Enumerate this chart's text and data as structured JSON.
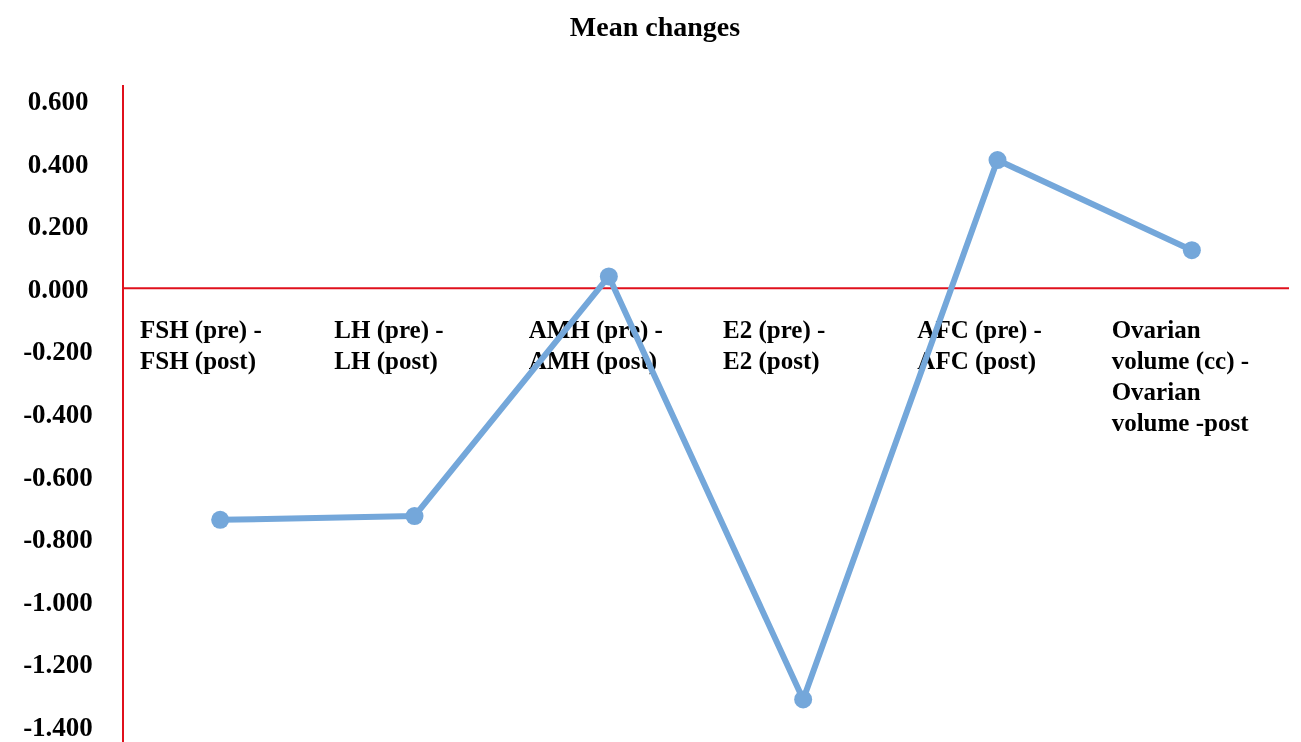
{
  "chart_data": {
    "type": "line",
    "title": "Mean changes",
    "categories": [
      "FSH (pre) - FSH (post)",
      "LH (pre) - LH (post)",
      "AMH (pre) - AMH (post)",
      "E2 (pre) - E2 (post)",
      "AFC (pre) - AFC (post)",
      "Ovarian volume (cc) - Ovarian volume -post"
    ],
    "series": [
      {
        "color": "#74a7da",
        "values": [
          -0.74,
          -0.728,
          0.038,
          -1.314,
          0.41,
          0.122
        ]
      }
    ],
    "ylim": [
      -1.45,
      0.65
    ],
    "yticks": [
      {
        "value": 0.6,
        "label": "0.600"
      },
      {
        "value": 0.4,
        "label": "0.400"
      },
      {
        "value": 0.2,
        "label": "0.200"
      },
      {
        "value": 0,
        "label": "0.000"
      },
      {
        "value": -0.2,
        "label": "-0.200"
      },
      {
        "value": -0.4,
        "label": "-0.400"
      },
      {
        "value": -0.6,
        "label": "-0.600"
      },
      {
        "value": -0.8,
        "label": "-0.800"
      },
      {
        "value": -1,
        "label": "-1.000"
      },
      {
        "value": -1.2,
        "label": "-1.200"
      },
      {
        "value": -1.4,
        "label": "-1.400"
      }
    ],
    "marker": "circle",
    "line_style": "solid"
  }
}
